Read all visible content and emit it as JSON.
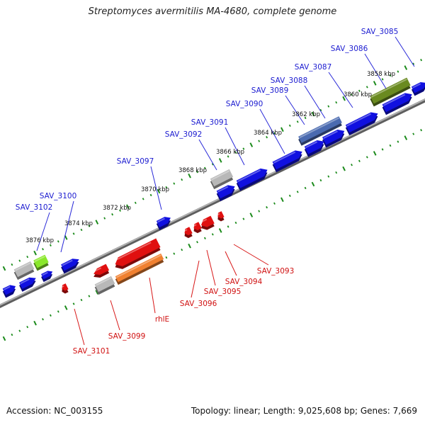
{
  "title": "Streptomyces avermitilis MA-4680, complete genome",
  "footer": {
    "accession": "Accession: NC_003155",
    "summary": "Topology: linear; Length: 9,025,608 bp; Genes: 7,669"
  },
  "colors": {
    "forward_gene": "#1010e0",
    "reverse_gene": "#e01010",
    "forward_label": "#1a1ad0",
    "reverse_label": "#d01010",
    "ticks": "#1a8a1a",
    "backbone": "#8a8a8a"
  },
  "scale_labels": [
    "3858 kbp",
    "3860 kbp",
    "3862 kbp",
    "3864 kbp",
    "3866 kbp",
    "3868 kbp",
    "3870 kbp",
    "3872 kbp",
    "3874 kbp",
    "3876 kbp"
  ],
  "forward_gene_labels": [
    "SAV_3085",
    "SAV_3086",
    "SAV_3087",
    "SAV_3088",
    "SAV_3089",
    "SAV_3090",
    "SAV_3091",
    "SAV_3092",
    "SAV_3097",
    "SAV_3100",
    "SAV_3102"
  ],
  "reverse_gene_labels": [
    "SAV_3093",
    "SAV_3094",
    "SAV_3095",
    "SAV_3096",
    "rhlE",
    "SAV_3099",
    "SAV_3101"
  ]
}
